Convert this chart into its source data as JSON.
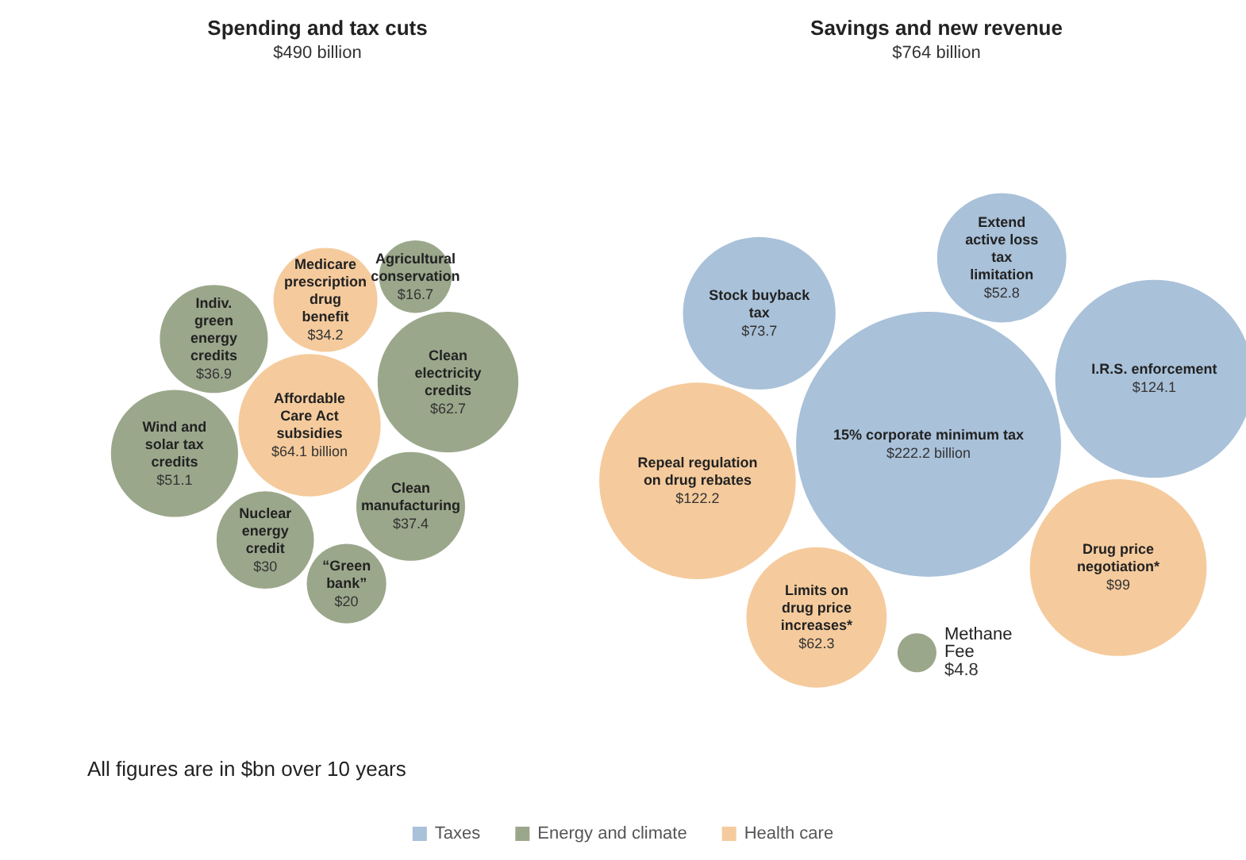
{
  "chart_data": [
    {
      "type": "other",
      "title": "Spending and tax cuts",
      "subtitle": "$490 billion",
      "legend": false,
      "categories": [
        "Affordable Care Act subsidies",
        "Clean electricity credits",
        "Wind and solar tax credits",
        "Clean manufacturing",
        "Indiv. green energy credits",
        "Medicare prescription drug benefit",
        "Nuclear energy credit",
        "“Green bank”",
        "Agricultural conservation"
      ],
      "series": [
        {
          "color": "#9ba78b",
          "values": [
            null,
            62.7,
            51.1,
            37.4,
            36.9,
            null,
            30,
            20,
            16.7
          ],
          "value_labels": [
            null,
            "$62.7",
            "$51.1",
            "$37.4",
            "$36.9",
            null,
            "$30",
            "$20",
            "$16.7"
          ]
        },
        {
          "color": "#f5cb9d",
          "values": [
            64.1,
            null,
            null,
            null,
            null,
            34.2,
            null,
            null,
            null
          ],
          "value_labels": [
            "$64.1 billion",
            null,
            null,
            null,
            null,
            "$34.2",
            null,
            null,
            null
          ]
        }
      ],
      "annotations": [
        "All figures are in $bn over 10 years"
      ]
    },
    {
      "type": "other",
      "title": "Savings and new revenue",
      "subtitle": "$764 billion",
      "legend": "bottom",
      "categories": [
        "15% corporate minimum tax",
        "I.R.S. enforcement",
        "Repeal regulation on drug rebates",
        "Drug price negotiation*",
        "Stock buyback tax",
        "Limits on drug price increases*",
        "Extend active loss tax limitation",
        "Methane Fee"
      ],
      "series": [
        {
          "name": "Taxes",
          "color": "#a9c1d9",
          "values": [
            222.2,
            124.1,
            null,
            null,
            73.7,
            null,
            52.8,
            null
          ],
          "value_labels": [
            "$222.2 billion",
            "$124.1",
            null,
            null,
            "$73.7",
            null,
            "$52.8",
            null
          ]
        },
        {
          "name": "Energy and climate",
          "color": "#9ba78b",
          "values": [
            null,
            null,
            null,
            null,
            null,
            null,
            null,
            4.8
          ],
          "value_labels": [
            null,
            null,
            null,
            null,
            null,
            null,
            null,
            "$4.8"
          ]
        },
        {
          "name": "Health care",
          "color": "#f5cb9d",
          "values": [
            null,
            null,
            122.2,
            99,
            null,
            62.3,
            null,
            null
          ],
          "value_labels": [
            null,
            null,
            "$122.2",
            "$99",
            null,
            "$62.3",
            null,
            null
          ]
        }
      ]
    }
  ]
}
